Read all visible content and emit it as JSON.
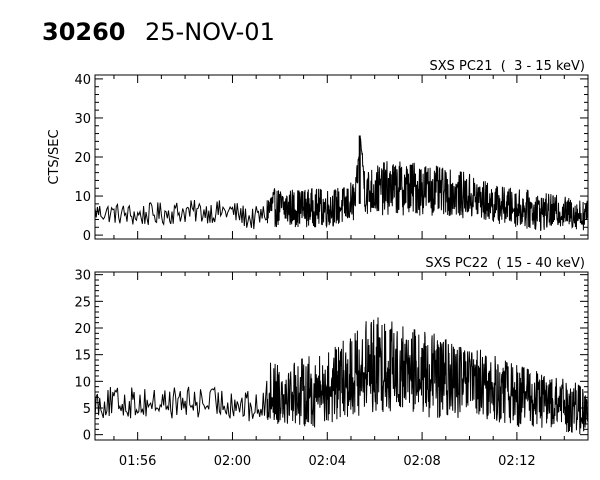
{
  "header": {
    "observation_id": "30260",
    "date": "25-NOV-01"
  },
  "chart_data": [
    {
      "type": "line",
      "title": "SXS PC21  (  3 - 15 keV)",
      "ylabel": "CTS/SEC",
      "xlabel": "",
      "x_ticks": [
        "01:56",
        "02:00",
        "02:04",
        "02:08",
        "02:12"
      ],
      "x_tick_minutes": [
        116,
        120,
        124,
        128,
        132
      ],
      "xlim_minutes": [
        114.2,
        135.0
      ],
      "y_ticks": [
        0,
        10,
        20,
        30,
        40
      ],
      "ylim": [
        -1,
        41
      ],
      "grid": false,
      "series": [
        {
          "x_minutes": [
            114.2,
            116.0,
            118.0,
            119.5,
            120.0,
            120.8,
            121.3,
            121.6,
            122.5,
            124.0,
            124.8,
            125.2,
            125.4,
            125.6,
            126.5,
            128.0,
            129.0,
            130.0,
            131.0,
            132.0,
            133.0,
            134.0,
            135.0
          ],
          "values": [
            6,
            5,
            6,
            6,
            6,
            4,
            5,
            7,
            7,
            7,
            7.5,
            9,
            25,
            11,
            12,
            12,
            11,
            10,
            8,
            7,
            6,
            6,
            5
          ],
          "noise": [
            2.5,
            3,
            3,
            3,
            3,
            3,
            3,
            5,
            5,
            5,
            5,
            6,
            0,
            6,
            7,
            7,
            6,
            6,
            5,
            5,
            5,
            4,
            4
          ],
          "spike": {
            "x_minute": 125.37,
            "value": 25.5
          },
          "dense_from_minute": 121.4
        }
      ]
    },
    {
      "type": "line",
      "title": "SXS PC22  ( 15 - 40 keV)",
      "ylabel": "",
      "xlabel": "",
      "x_ticks": [
        "01:56",
        "02:00",
        "02:04",
        "02:08",
        "02:12"
      ],
      "x_tick_minutes": [
        116,
        120,
        124,
        128,
        132
      ],
      "xlim_minutes": [
        114.2,
        135.0
      ],
      "y_ticks": [
        0,
        5,
        10,
        15,
        20,
        25,
        30
      ],
      "ylim": [
        -1,
        30.5
      ],
      "grid": false,
      "series": [
        {
          "x_minutes": [
            114.2,
            116.0,
            118.0,
            119.5,
            120.0,
            120.8,
            121.3,
            121.6,
            122.5,
            123.5,
            124.2,
            125.0,
            125.8,
            126.5,
            127.5,
            128.5,
            129.5,
            130.5,
            131.5,
            132.5,
            133.5,
            134.5,
            135.0
          ],
          "values": [
            6,
            6,
            6,
            6,
            6,
            5,
            5,
            8,
            8,
            8,
            9,
            11,
            13,
            13,
            12,
            11,
            10,
            9,
            8,
            7,
            6,
            5,
            4
          ],
          "noise": [
            3,
            3,
            3,
            3,
            3,
            3,
            3,
            6,
            6,
            7,
            7,
            8,
            9,
            9,
            8,
            8,
            7,
            7,
            6,
            6,
            5,
            5,
            4
          ],
          "dense_from_minute": 121.4
        }
      ]
    }
  ]
}
